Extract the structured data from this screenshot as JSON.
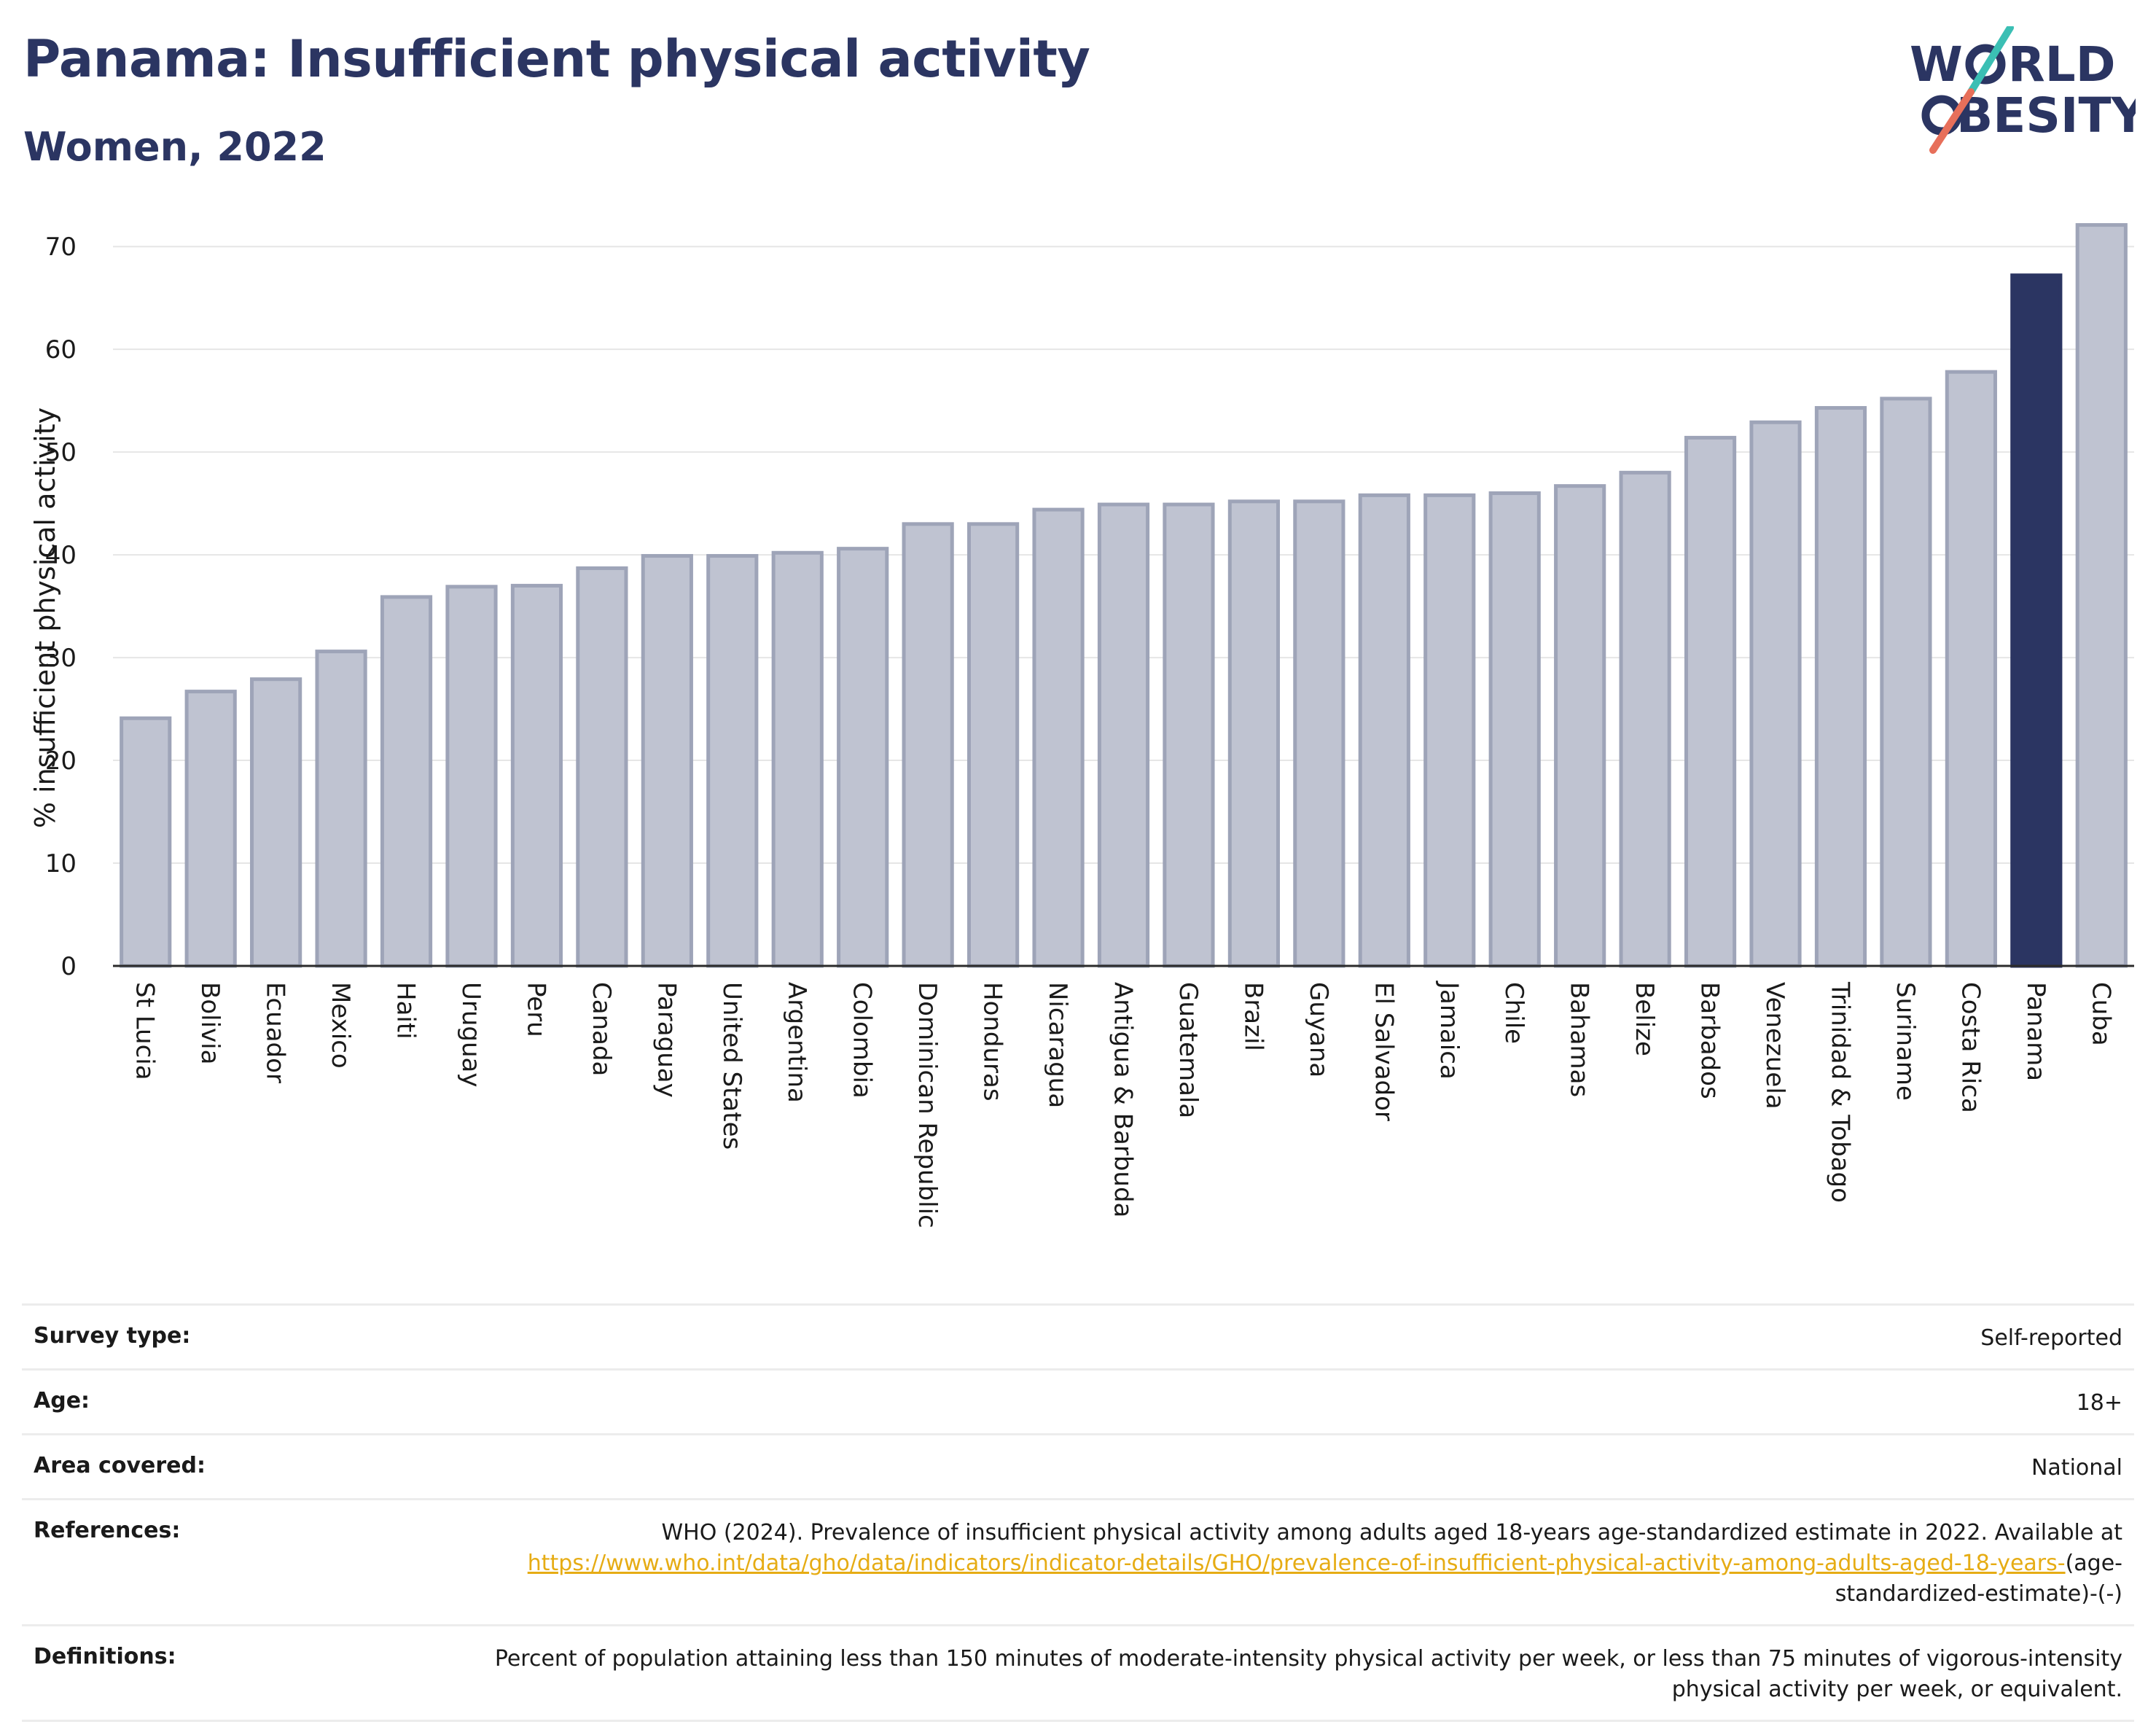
{
  "header": {
    "title": "Panama: Insufficient physical activity",
    "subtitle": "Women, 2022"
  },
  "logo": {
    "line1": "W",
    "line1_rest": "RLD",
    "line2": "BESITY",
    "slash_colors": [
      "#3bbfb4",
      "#e76f5a"
    ],
    "text_color": "#2b3562"
  },
  "colors": {
    "bar": "#bfc3d1",
    "bar_border": "#9ea4b8",
    "highlight": "#2b3562",
    "grid": "#e6e6e6",
    "link": "#e6ac14"
  },
  "chart_data": {
    "type": "bar",
    "ylabel": "% insufficient physical activity",
    "xlabel": "",
    "ylim": [
      0,
      72
    ],
    "yticks": [
      0,
      10,
      20,
      30,
      40,
      50,
      60,
      70
    ],
    "grid": true,
    "highlight": "Panama",
    "categories": [
      "St Lucia",
      "Bolivia",
      "Ecuador",
      "Mexico",
      "Haiti",
      "Uruguay",
      "Peru",
      "Canada",
      "Paraguay",
      "United States",
      "Argentina",
      "Colombia",
      "Dominican Republic",
      "Honduras",
      "Nicaragua",
      "Antigua & Barbuda",
      "Guatemala",
      "Brazil",
      "Guyana",
      "El Salvador",
      "Jamaica",
      "Chile",
      "Bahamas",
      "Belize",
      "Barbados",
      "Venezuela",
      "Trinidad & Tobago",
      "Suriname",
      "Costa Rica",
      "Panama",
      "Cuba"
    ],
    "values": [
      24.1,
      26.7,
      27.9,
      30.6,
      35.9,
      36.9,
      37.0,
      38.7,
      39.9,
      39.9,
      40.2,
      40.6,
      43.0,
      43.0,
      44.4,
      44.9,
      44.9,
      45.2,
      45.2,
      45.8,
      45.8,
      46.0,
      46.7,
      48.0,
      51.4,
      52.9,
      54.3,
      55.2,
      57.8,
      67.2,
      72.1
    ]
  },
  "info": {
    "survey_type_label": "Survey type:",
    "survey_type_value": "Self-reported",
    "age_label": "Age:",
    "age_value": "18+",
    "area_label": "Area covered:",
    "area_value": "National",
    "references_label": "References:",
    "references_text": "WHO (2024). Prevalence of insufficient physical activity among adults aged 18-years age-standardized estimate in 2022. Available at",
    "references_link": "https://www.who.int/data/gho/data/indicators/indicator-details/GHO/prevalence-of-insufficient-physical-activity-among-adults-aged-18-years-",
    "references_suffix": "(age-standardized-estimate)-(-)",
    "definitions_label": "Definitions:",
    "definitions_value": "Percent of population attaining less than 150 minutes of moderate-intensity physical activity per week, or less than 75 minutes of vigorous-intensity physical activity per week, or equivalent."
  }
}
